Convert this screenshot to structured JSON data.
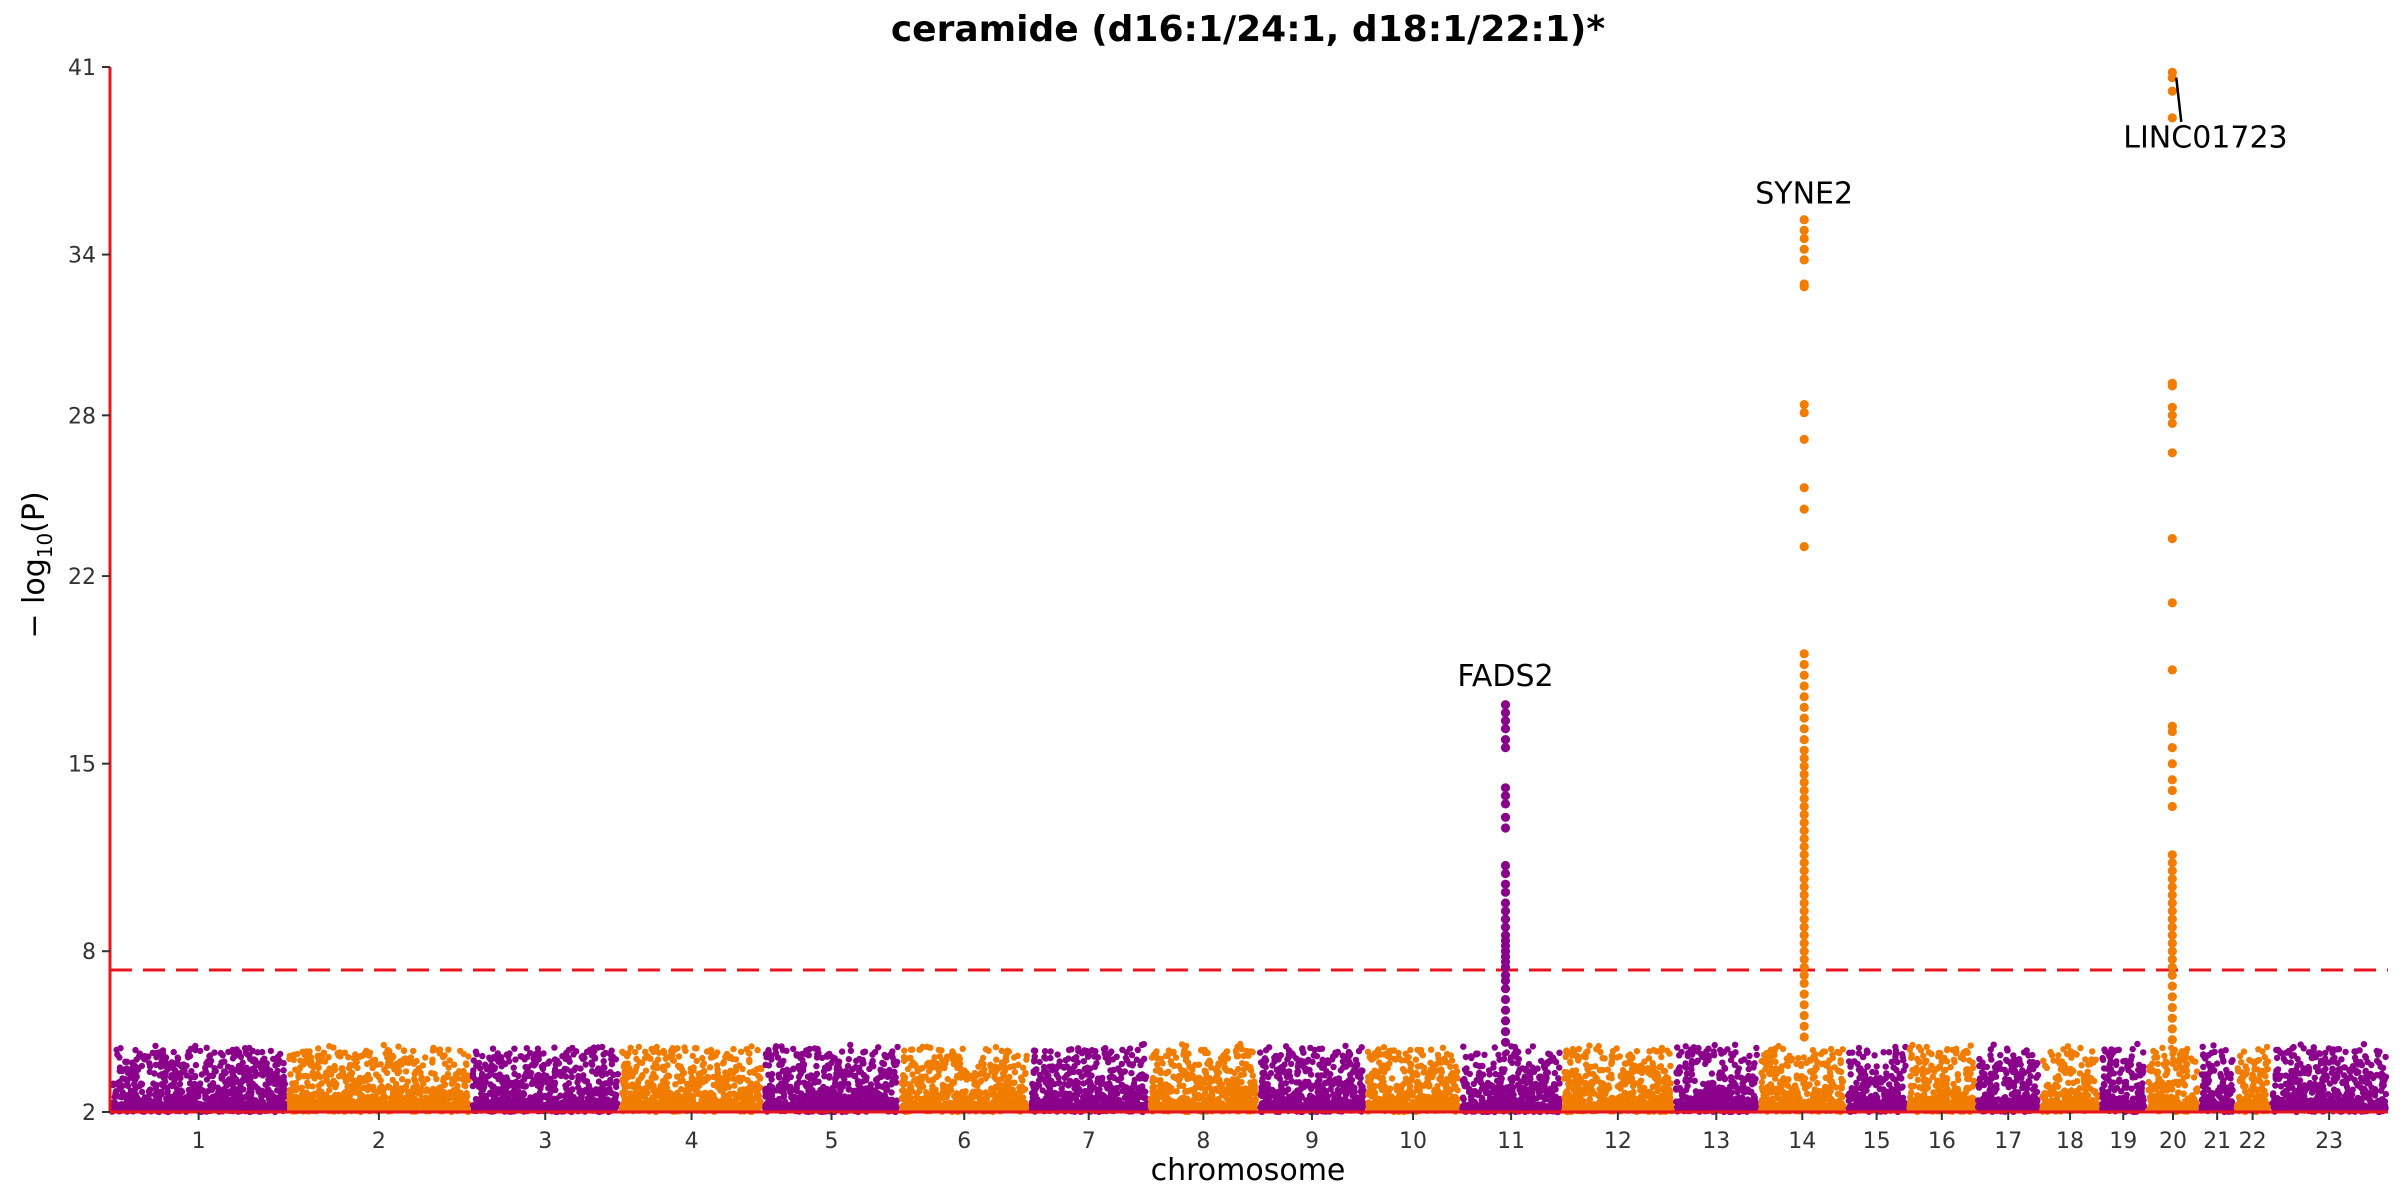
{
  "chart_data": {
    "type": "scatter",
    "title": "ceramide (d16:1/24:1, d18:1/22:1)*",
    "xlabel": "chromosome",
    "ylabel_main": "− log",
    "ylabel_sub": "10",
    "ylabel_tail": "(P)",
    "ylim": [
      2,
      41
    ],
    "yticks": [
      2,
      8,
      15,
      22,
      28,
      34,
      41
    ],
    "threshold": 7.3,
    "colors": {
      "odd": "#8B008B",
      "even": "#F07C00",
      "threshold": "#E8141B",
      "axis": "#E8141B"
    },
    "chromosomes": [
      {
        "label": "1",
        "start": 0,
        "end": 235
      },
      {
        "label": "2",
        "start": 235,
        "end": 478
      },
      {
        "label": "3",
        "start": 478,
        "end": 676
      },
      {
        "label": "4",
        "start": 676,
        "end": 866
      },
      {
        "label": "5",
        "start": 866,
        "end": 1047
      },
      {
        "label": "6",
        "start": 1047,
        "end": 1218
      },
      {
        "label": "7",
        "start": 1218,
        "end": 1377
      },
      {
        "label": "8",
        "start": 1377,
        "end": 1522
      },
      {
        "label": "9",
        "start": 1522,
        "end": 1665
      },
      {
        "label": "10",
        "start": 1665,
        "end": 1790
      },
      {
        "label": "11",
        "start": 1790,
        "end": 1925
      },
      {
        "label": "12",
        "start": 1925,
        "end": 2073
      },
      {
        "label": "13",
        "start": 2073,
        "end": 2186
      },
      {
        "label": "14",
        "start": 2186,
        "end": 2301
      },
      {
        "label": "15",
        "start": 2301,
        "end": 2383
      },
      {
        "label": "16",
        "start": 2383,
        "end": 2474
      },
      {
        "label": "17",
        "start": 2474,
        "end": 2559
      },
      {
        "label": "18",
        "start": 2559,
        "end": 2638
      },
      {
        "label": "19",
        "start": 2638,
        "end": 2700
      },
      {
        "label": "20",
        "start": 2700,
        "end": 2770
      },
      {
        "label": "21",
        "start": 2770,
        "end": 2817
      },
      {
        "label": "22",
        "start": 2817,
        "end": 2864
      },
      {
        "label": "23",
        "start": 2864,
        "end": 3020
      }
    ],
    "peaks": [
      {
        "chrom": "11",
        "pos": 1850,
        "values": [
          17.2,
          16.9,
          16.6,
          16.3,
          15.9,
          15.6,
          14.1,
          13.8,
          13.5,
          13.0,
          12.6,
          11.2,
          10.9,
          10.5,
          10.2,
          9.8,
          9.5,
          9.2,
          8.9,
          8.6,
          8.4,
          8.2,
          8.0,
          7.8,
          7.6,
          7.4,
          7.1,
          6.9,
          6.6,
          6.2,
          5.8,
          5.4,
          5.0,
          4.6
        ]
      },
      {
        "chrom": "14",
        "pos": 2246,
        "values": [
          35.3,
          34.9,
          34.6,
          34.2,
          33.8,
          32.9,
          32.8,
          28.4,
          28.1,
          27.1,
          25.3,
          24.5,
          23.1,
          19.1,
          18.7,
          18.3,
          17.9,
          17.5,
          17.1,
          16.7,
          16.3,
          15.9,
          15.5,
          15.2,
          14.9,
          14.6,
          14.3,
          14.0,
          13.7,
          13.4,
          13.1,
          12.8,
          12.5,
          12.2,
          11.9,
          11.6,
          11.3,
          11.0,
          10.7,
          10.4,
          10.1,
          9.8,
          9.5,
          9.2,
          8.9,
          8.6,
          8.3,
          8.0,
          7.7,
          7.4,
          7.1,
          6.8,
          6.4,
          6.0,
          5.6,
          5.2,
          4.8
        ]
      },
      {
        "chrom": "20",
        "pos": 2734,
        "values": [
          40.8,
          40.6,
          40.1,
          39.1,
          29.2,
          29.1,
          28.3,
          28.0,
          27.7,
          26.6,
          23.4,
          21.0,
          18.5,
          16.4,
          16.2,
          15.6,
          15.0,
          14.4,
          14.0,
          13.4,
          11.6,
          11.3,
          11.0,
          10.7,
          10.4,
          10.1,
          9.8,
          9.5,
          9.2,
          8.9,
          8.6,
          8.3,
          8.0,
          7.7,
          7.4,
          7.1,
          6.7,
          6.3,
          5.9,
          5.5,
          5.1,
          4.7
        ]
      }
    ],
    "annotations": [
      {
        "text": "FADS2",
        "x": 1850,
        "y": 17.9
      },
      {
        "text": "SYNE2",
        "x": 2246,
        "y": 35.9
      },
      {
        "text": "LINC01723",
        "x": 2778,
        "y": 38.0
      }
    ]
  }
}
